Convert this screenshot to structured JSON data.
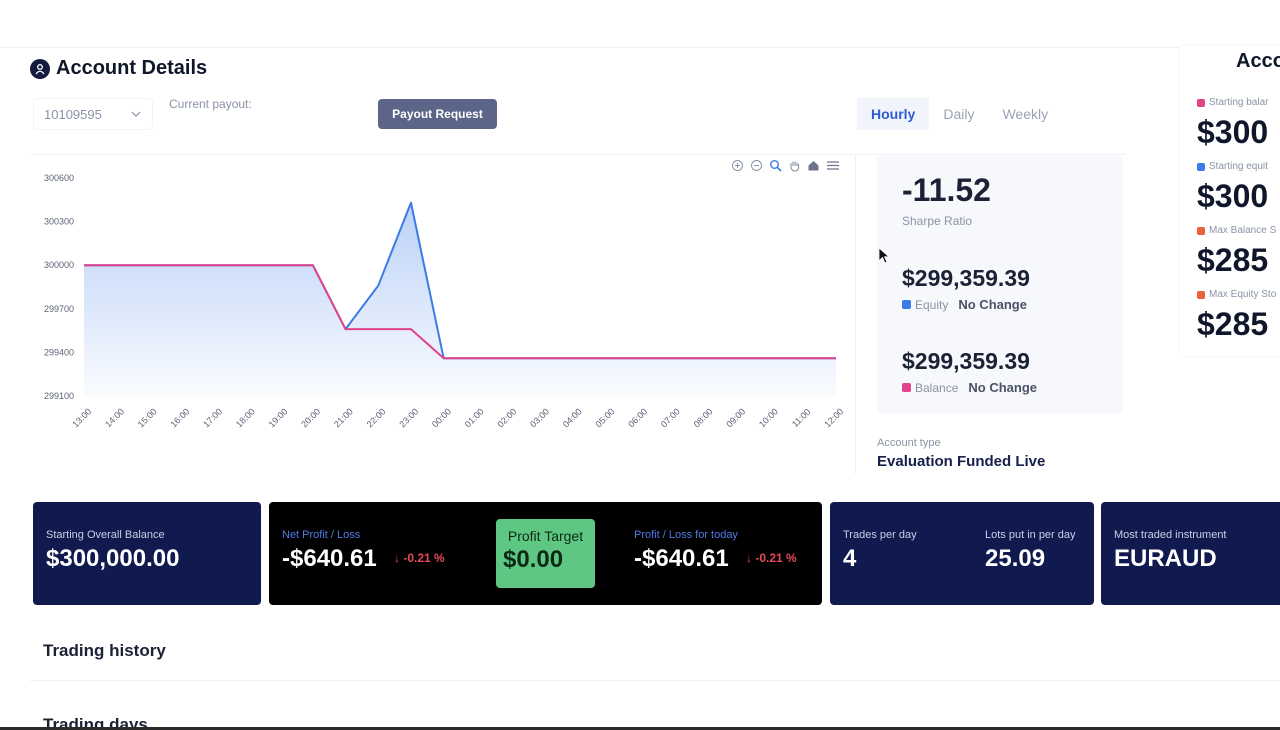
{
  "header": {
    "title": "Account Details",
    "account_id": "10109595",
    "current_payout_label": "Current payout:",
    "payout_button": "Payout Request",
    "tabs": [
      {
        "label": "Hourly",
        "active": true
      },
      {
        "label": "Daily",
        "active": false
      },
      {
        "label": "Weekly",
        "active": false
      }
    ]
  },
  "colors": {
    "navy": "#111a4f",
    "equity_line": "#3b7be8",
    "balance_line": "#e0438a",
    "profit_target_bg": "#5fc784",
    "negative": "#e64a5a"
  },
  "stats": {
    "sharpe_value": "-11.52",
    "sharpe_label": "Sharpe Ratio",
    "equity_value": "$299,359.39",
    "equity_label": "Equity",
    "equity_change": "No Change",
    "balance_value": "$299,359.39",
    "balance_label": "Balance",
    "balance_change": "No Change",
    "account_type_label": "Account type",
    "account_type_value": "Evaluation Funded Live"
  },
  "right_panel": {
    "title": "Acco",
    "items": [
      {
        "label": "Starting balar",
        "value": "$300",
        "color": "#e0438a"
      },
      {
        "label": "Starting equit",
        "value": "$300",
        "color": "#3b7be8"
      },
      {
        "label": "Max Balance S",
        "value": "$285",
        "color": "#e8603c"
      },
      {
        "label": "Max Equity Sto",
        "value": "$285",
        "color": "#e8603c"
      }
    ]
  },
  "cards": {
    "starting_label": "Starting Overall Balance",
    "starting_value": "$300,000.00",
    "net_label": "Net Profit / Loss",
    "net_value": "-$640.61",
    "net_pct": "↓ -0.21 %",
    "target_label": "Profit Target",
    "target_value": "$0.00",
    "today_label": "Profit / Loss for today",
    "today_value": "-$640.61",
    "today_pct": "↓ -0.21 %",
    "trades_label": "Trades per day",
    "trades_value": "4",
    "lots_label": "Lots put in per day",
    "lots_value": "25.09",
    "instrument_label": "Most traded instrument",
    "instrument_value": "EURAUD"
  },
  "sections": {
    "trading_history": "Trading history",
    "trading_days": "Trading days"
  },
  "chart_data": {
    "type": "area",
    "title": "",
    "xlabel": "",
    "ylabel": "",
    "x": [
      "13:00",
      "14:00",
      "15:00",
      "16:00",
      "17:00",
      "18:00",
      "19:00",
      "20:00",
      "21:00",
      "22:00",
      "23:00",
      "00:00",
      "01:00",
      "02:00",
      "03:00",
      "04:00",
      "05:00",
      "06:00",
      "07:00",
      "08:00",
      "09:00",
      "10:00",
      "11:00",
      "12:00"
    ],
    "y_ticks": [
      "300600",
      "300300",
      "300000",
      "299700",
      "299400",
      "299100"
    ],
    "ylim": [
      299100,
      300600
    ],
    "grid": false,
    "series": [
      {
        "key": "equity",
        "color": "#3b7be8",
        "values": [
          300000,
          300000,
          300000,
          300000,
          300000,
          300000,
          300000,
          300000,
          299560,
          299860,
          300430,
          299360,
          299360,
          299360,
          299360,
          299360,
          299360,
          299360,
          299360,
          299360,
          299360,
          299360,
          299360,
          299360
        ]
      },
      {
        "key": "balance",
        "color": "#e0438a",
        "values": [
          300000,
          300000,
          300000,
          300000,
          300000,
          300000,
          300000,
          300000,
          299560,
          299560,
          299560,
          299360,
          299360,
          299360,
          299360,
          299360,
          299360,
          299360,
          299360,
          299360,
          299360,
          299360,
          299360,
          299360
        ]
      }
    ]
  }
}
